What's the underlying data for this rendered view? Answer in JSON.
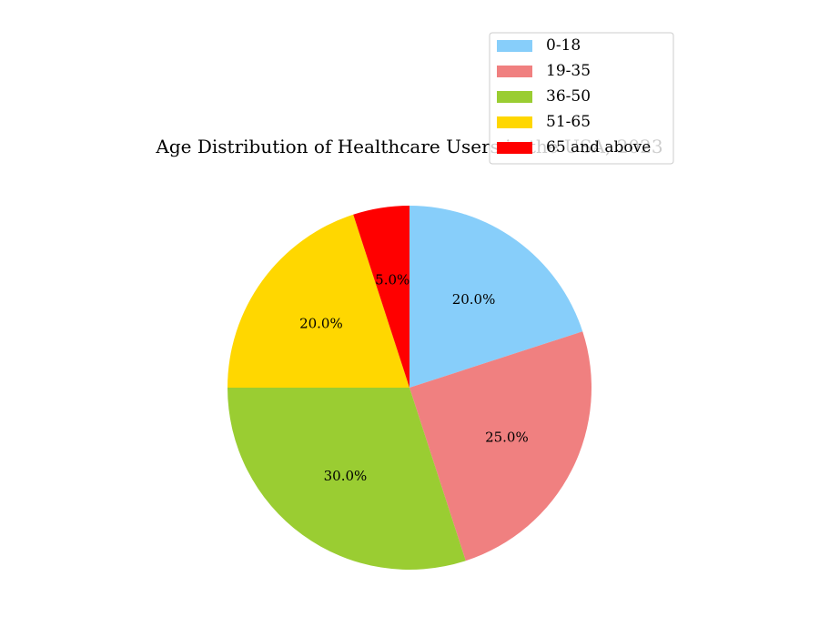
{
  "chart_data": {
    "type": "pie",
    "title": "Age Distribution of Healthcare Users in the USA, 2023",
    "categories": [
      "0-18",
      "19-35",
      "36-50",
      "51-65",
      "65 and above"
    ],
    "values": [
      20,
      25,
      30,
      20,
      5
    ],
    "labels": [
      "20.0%",
      "25.0%",
      "30.0%",
      "20.0%",
      "5.0%"
    ],
    "colors": [
      "#87CEFA",
      "#F08080",
      "#9ACD32",
      "#FFD700",
      "#FF0000"
    ],
    "start_angle": 90,
    "direction": "clockwise",
    "legend": {
      "placement": "upper-right",
      "entries": [
        "0-18",
        "19-35",
        "36-50",
        "51-65",
        "65 and above"
      ]
    }
  }
}
